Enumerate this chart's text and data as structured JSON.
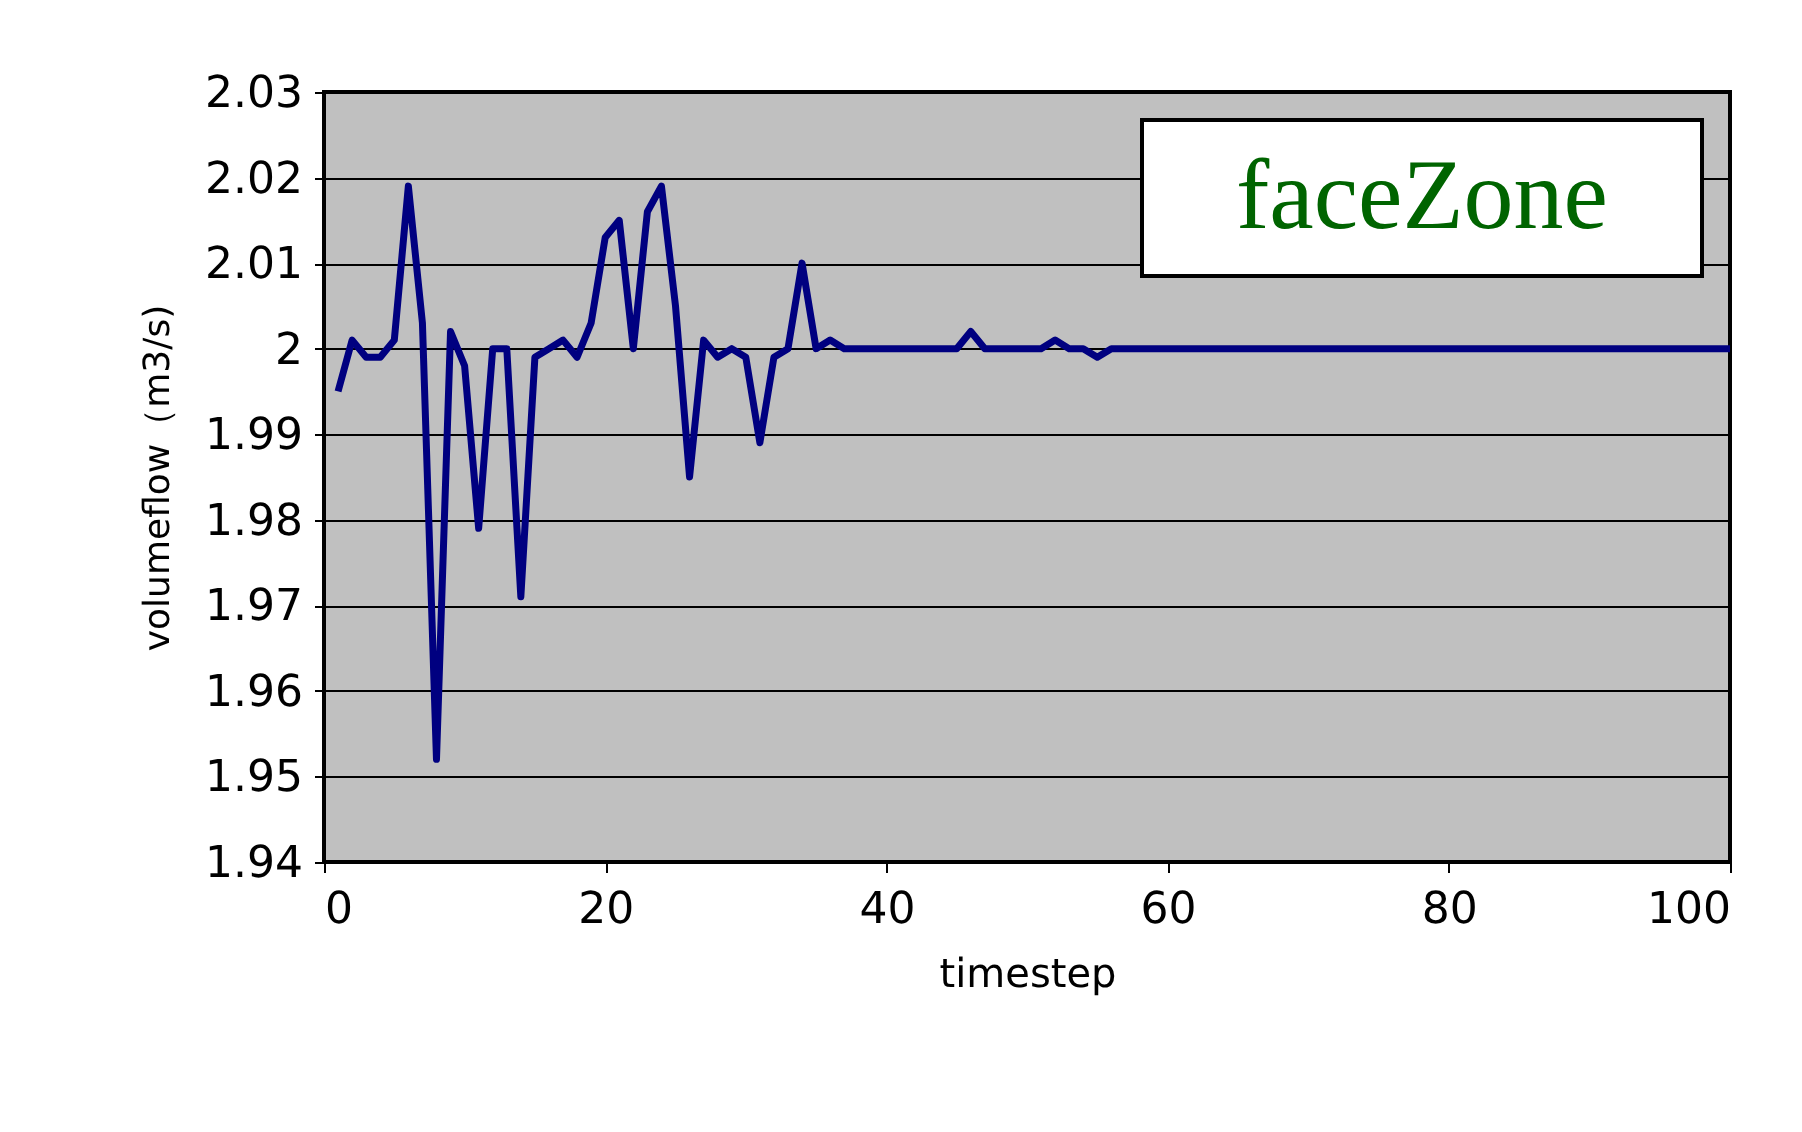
{
  "chart_data": {
    "type": "line",
    "xlabel": "timestep",
    "ylabel": "volumeflow（m3/s)",
    "annotations": [
      "faceZone"
    ],
    "x": [
      1,
      2,
      3,
      4,
      5,
      6,
      7,
      8,
      9,
      10,
      11,
      12,
      13,
      14,
      15,
      16,
      17,
      18,
      19,
      20,
      21,
      22,
      23,
      24,
      25,
      26,
      27,
      28,
      29,
      30,
      31,
      32,
      33,
      34,
      35,
      36,
      37,
      38,
      39,
      40,
      41,
      42,
      43,
      44,
      45,
      46,
      47,
      48,
      49,
      50,
      51,
      52,
      53,
      54,
      55,
      56,
      57,
      58,
      59,
      60,
      61,
      62,
      63,
      64,
      65,
      66,
      67,
      68,
      69,
      70,
      71,
      72,
      73,
      74,
      75,
      76,
      77,
      78,
      79,
      80,
      81,
      82,
      83,
      84,
      85,
      86,
      87,
      88,
      89,
      90,
      91,
      92,
      93,
      94,
      95,
      96,
      97,
      98,
      99,
      100
    ],
    "series": [
      {
        "color": "#000080",
        "values": [
          1.995,
          2.001,
          1.999,
          1.999,
          2.001,
          2.019,
          2.003,
          1.952,
          2.002,
          1.998,
          1.979,
          2.0,
          2.0,
          1.971,
          1.999,
          2.0,
          2.001,
          1.999,
          2.003,
          2.013,
          2.015,
          2.0,
          2.016,
          2.019,
          2.005,
          1.985,
          2.001,
          1.999,
          2.0,
          1.999,
          1.989,
          1.999,
          2.0,
          2.01,
          2.0,
          2.001,
          2.0,
          2.0,
          2.0,
          2.0,
          2.0,
          2.0,
          2.0,
          2.0,
          2.0,
          2.002,
          2.0,
          2.0,
          2.0,
          2.0,
          2.0,
          2.001,
          2.0,
          2.0,
          1.999,
          2.0,
          2.0,
          2.0,
          2.0,
          2.0,
          2.0,
          2.0,
          2.0,
          2.0,
          2.0,
          2.0,
          2.0,
          2.0,
          2.0,
          2.0,
          2.0,
          2.0,
          2.0,
          2.0,
          2.0,
          2.0,
          2.0,
          2.0,
          2.0,
          2.0,
          2.0,
          2.0,
          2.0,
          2.0,
          2.0,
          2.0,
          2.0,
          2.0,
          2.0,
          2.0,
          2.0,
          2.0,
          2.0,
          2.0,
          2.0,
          2.0,
          2.0,
          2.0,
          2.0,
          2.0
        ]
      }
    ],
    "xlim": [
      0,
      100
    ],
    "xticks": [
      0,
      20,
      40,
      60,
      80,
      100
    ],
    "ylim": [
      1.94,
      2.03
    ],
    "yticks": [
      1.94,
      1.95,
      1.96,
      1.97,
      1.98,
      1.99,
      2,
      2.01,
      2.02,
      2.03
    ],
    "grid": "y",
    "marker": "none",
    "line_style": "solid",
    "legend": false
  }
}
